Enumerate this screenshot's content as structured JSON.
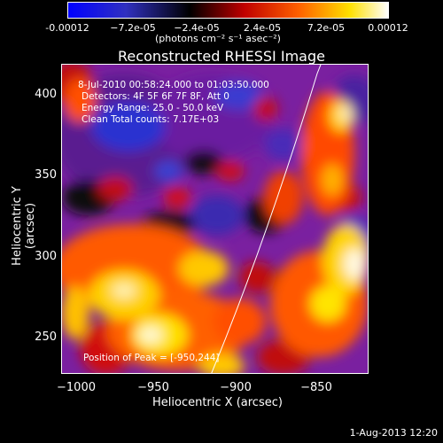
{
  "title": "Reconstructed RHESSI Image",
  "colorbar": {
    "ticks": [
      "-0.00012",
      "−7.2e-05",
      "−2.4e-05",
      "2.4e-05",
      "7.2e-05",
      "0.00012"
    ],
    "unit": "(photons cm⁻² s⁻¹ asec⁻²)",
    "colors": [
      "#0000ff",
      "#000000",
      "#ff0000",
      "#ffff00",
      "#ffffff"
    ]
  },
  "info": {
    "time": "8-Jul-2010 00:58:24.000 to 01:03:50.000",
    "detectors": "Detectors: 4F 5F 6F 7F 8F, Att 0",
    "energy": "Energy Range: 25.0 - 50.0 keV",
    "clean": "Clean     Total counts: 7.17E+03",
    "peak": "Position of Peak = [-950,244]"
  },
  "axes": {
    "xlabel": "Heliocentric X (arcsec)",
    "ylabel": "Heliocentric Y (arcsec)",
    "xticks": [
      "−1000",
      "−950",
      "−900",
      "−850"
    ],
    "yticks": [
      "400",
      "350",
      "300",
      "250"
    ]
  },
  "timestamp": "1-Aug-2013 12:20"
}
